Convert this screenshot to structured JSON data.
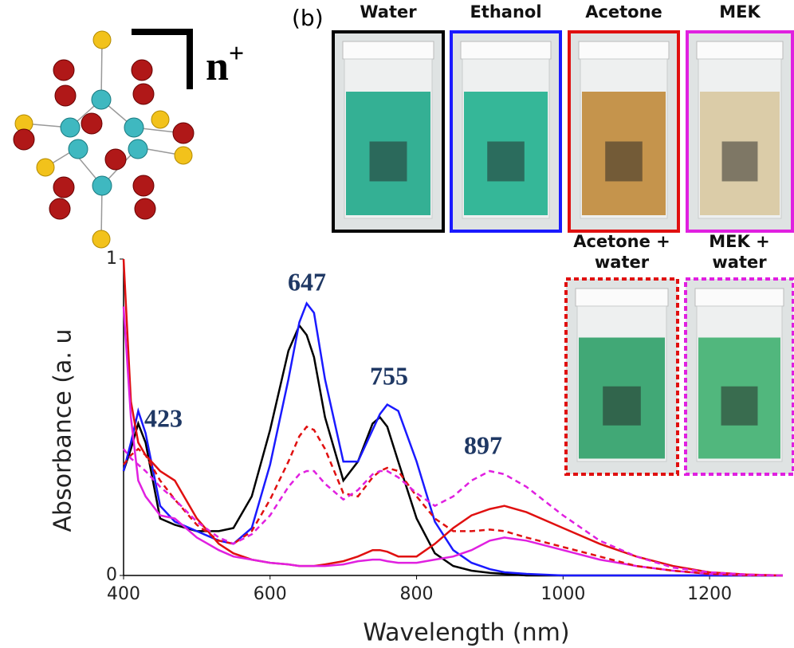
{
  "chart_data": {
    "type": "line",
    "panel_label": "(b)",
    "charge_label": {
      "base": "n",
      "sup": "+"
    },
    "xlabel": "Wavelength (nm)",
    "ylabel": "Absorbance (a. u",
    "annotations": [
      "647",
      "755",
      "423",
      "897"
    ],
    "x": [
      400,
      410,
      420,
      430,
      450,
      470,
      500,
      530,
      550,
      575,
      600,
      625,
      640,
      650,
      660,
      675,
      700,
      720,
      740,
      750,
      760,
      775,
      800,
      825,
      850,
      875,
      900,
      920,
      950,
      1000,
      1050,
      1100,
      1150,
      1200,
      1250,
      1300
    ],
    "series": [
      {
        "name": "Water",
        "color": "#000000",
        "linestyle": "solid",
        "values": [
          0.33,
          0.4,
          0.48,
          0.42,
          0.18,
          0.16,
          0.14,
          0.14,
          0.15,
          0.25,
          0.46,
          0.71,
          0.79,
          0.76,
          0.69,
          0.5,
          0.3,
          0.36,
          0.48,
          0.5,
          0.47,
          0.36,
          0.18,
          0.07,
          0.03,
          0.015,
          0.008,
          0.005,
          0,
          0,
          0,
          0,
          0,
          0,
          0,
          0
        ]
      },
      {
        "name": "Ethanol",
        "color": "#1a1aff",
        "linestyle": "solid",
        "values": [
          0.33,
          0.42,
          0.52,
          0.45,
          0.22,
          0.17,
          0.14,
          0.11,
          0.1,
          0.15,
          0.35,
          0.62,
          0.8,
          0.86,
          0.83,
          0.62,
          0.36,
          0.36,
          0.46,
          0.51,
          0.54,
          0.52,
          0.36,
          0.17,
          0.08,
          0.04,
          0.02,
          0.01,
          0.005,
          0,
          0,
          0,
          0,
          0,
          0,
          0
        ]
      },
      {
        "name": "Acetone",
        "color": "#e01010",
        "linestyle": "solid",
        "values": [
          1.0,
          0.55,
          0.42,
          0.38,
          0.33,
          0.3,
          0.18,
          0.1,
          0.07,
          0.05,
          0.04,
          0.035,
          0.03,
          0.03,
          0.03,
          0.035,
          0.045,
          0.06,
          0.08,
          0.08,
          0.075,
          0.06,
          0.06,
          0.1,
          0.15,
          0.19,
          0.21,
          0.22,
          0.2,
          0.15,
          0.1,
          0.06,
          0.03,
          0.01,
          0.003,
          0
        ]
      },
      {
        "name": "MEK",
        "color": "#e020e0",
        "linestyle": "solid",
        "values": [
          0.85,
          0.5,
          0.3,
          0.25,
          0.19,
          0.18,
          0.12,
          0.08,
          0.06,
          0.05,
          0.04,
          0.035,
          0.03,
          0.03,
          0.03,
          0.03,
          0.035,
          0.045,
          0.05,
          0.05,
          0.045,
          0.04,
          0.04,
          0.05,
          0.06,
          0.08,
          0.11,
          0.12,
          0.11,
          0.08,
          0.05,
          0.03,
          0.015,
          0.005,
          0.001,
          0
        ]
      },
      {
        "name": "Acetone + water",
        "color": "#e01010",
        "linestyle": "dashed",
        "values": [
          0.35,
          0.38,
          0.4,
          0.38,
          0.3,
          0.24,
          0.16,
          0.11,
          0.1,
          0.14,
          0.24,
          0.36,
          0.44,
          0.47,
          0.46,
          0.4,
          0.26,
          0.25,
          0.31,
          0.33,
          0.34,
          0.33,
          0.25,
          0.18,
          0.14,
          0.14,
          0.145,
          0.14,
          0.12,
          0.09,
          0.06,
          0.03,
          0.015,
          0.005,
          0.001,
          0
        ]
      },
      {
        "name": "MEK + water",
        "color": "#e020e0",
        "linestyle": "dashed",
        "values": [
          0.4,
          0.37,
          0.35,
          0.33,
          0.28,
          0.24,
          0.17,
          0.12,
          0.1,
          0.13,
          0.19,
          0.28,
          0.32,
          0.33,
          0.33,
          0.29,
          0.24,
          0.27,
          0.32,
          0.33,
          0.33,
          0.31,
          0.26,
          0.22,
          0.25,
          0.3,
          0.33,
          0.32,
          0.28,
          0.19,
          0.11,
          0.06,
          0.025,
          0.01,
          0.003,
          0
        ]
      }
    ],
    "xlim": [
      400,
      1300
    ],
    "xticks": [
      400,
      600,
      800,
      1000,
      1200
    ],
    "ylim": [
      0,
      1
    ],
    "yticks": [
      0,
      1
    ]
  }
}
